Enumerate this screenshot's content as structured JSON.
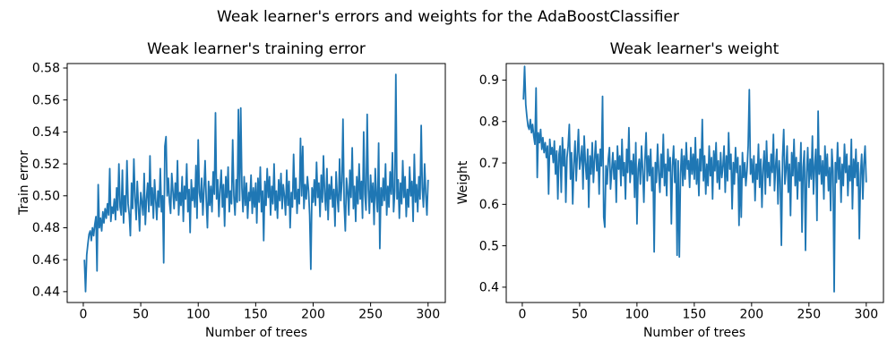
{
  "suptitle": "Weak learner's errors and weights for the AdaBoostClassifier",
  "colors": {
    "line": "#1f77b4",
    "axes": "#000000",
    "text": "#000000",
    "background": "#ffffff"
  },
  "chart_data": [
    {
      "type": "line",
      "title": "Weak learner's training error",
      "xlabel": "Number of trees",
      "ylabel": "Train error",
      "legend_position": "none",
      "grid": false,
      "x_start": 1,
      "x_step": 1,
      "xlim": [
        -14,
        315
      ],
      "ylim": [
        0.4332,
        0.5828
      ],
      "xticks": [
        0,
        50,
        100,
        150,
        200,
        250,
        300
      ],
      "xtick_labels": [
        "0",
        "50",
        "100",
        "150",
        "200",
        "250",
        "300"
      ],
      "yticks": [
        0.44,
        0.46,
        0.48,
        0.5,
        0.52,
        0.54,
        0.56,
        0.58
      ],
      "ytick_labels": [
        "0.44",
        "0.46",
        "0.48",
        "0.50",
        "0.52",
        "0.54",
        "0.56",
        "0.58"
      ],
      "y": [
        0.46,
        0.44,
        0.463,
        0.47,
        0.476,
        0.478,
        0.472,
        0.48,
        0.475,
        0.482,
        0.487,
        0.453,
        0.507,
        0.48,
        0.486,
        0.478,
        0.49,
        0.483,
        0.492,
        0.486,
        0.495,
        0.488,
        0.517,
        0.484,
        0.493,
        0.489,
        0.498,
        0.485,
        0.505,
        0.491,
        0.52,
        0.493,
        0.488,
        0.516,
        0.483,
        0.5,
        0.49,
        0.522,
        0.495,
        0.488,
        0.475,
        0.508,
        0.492,
        0.523,
        0.499,
        0.485,
        0.509,
        0.494,
        0.478,
        0.502,
        0.496,
        0.488,
        0.514,
        0.482,
        0.498,
        0.508,
        0.49,
        0.525,
        0.494,
        0.505,
        0.486,
        0.51,
        0.497,
        0.485,
        0.503,
        0.493,
        0.517,
        0.49,
        0.5,
        0.458,
        0.531,
        0.537,
        0.5,
        0.511,
        0.496,
        0.489,
        0.514,
        0.503,
        0.492,
        0.508,
        0.497,
        0.522,
        0.488,
        0.502,
        0.494,
        0.512,
        0.484,
        0.506,
        0.498,
        0.52,
        0.49,
        0.504,
        0.477,
        0.51,
        0.497,
        0.505,
        0.493,
        0.519,
        0.486,
        0.535,
        0.502,
        0.496,
        0.511,
        0.488,
        0.503,
        0.522,
        0.497,
        0.48,
        0.509,
        0.494,
        0.506,
        0.49,
        0.515,
        0.501,
        0.552,
        0.498,
        0.51,
        0.487,
        0.504,
        0.516,
        0.493,
        0.507,
        0.481,
        0.512,
        0.499,
        0.518,
        0.49,
        0.503,
        0.495,
        0.535,
        0.5,
        0.488,
        0.51,
        0.496,
        0.554,
        0.497,
        0.555,
        0.505,
        0.49,
        0.512,
        0.494,
        0.508,
        0.486,
        0.502,
        0.497,
        0.513,
        0.489,
        0.505,
        0.493,
        0.508,
        0.483,
        0.511,
        0.496,
        0.518,
        0.49,
        0.503,
        0.472,
        0.509,
        0.494,
        0.517,
        0.499,
        0.512,
        0.488,
        0.506,
        0.495,
        0.52,
        0.491,
        0.503,
        0.486,
        0.51,
        0.497,
        0.514,
        0.492,
        0.507,
        0.5,
        0.488,
        0.516,
        0.494,
        0.509,
        0.48,
        0.502,
        0.493,
        0.526,
        0.498,
        0.511,
        0.489,
        0.504,
        0.495,
        0.536,
        0.5,
        0.531,
        0.492,
        0.507,
        0.498,
        0.512,
        0.503,
        0.488,
        0.454,
        0.505,
        0.496,
        0.51,
        0.494,
        0.521,
        0.499,
        0.508,
        0.487,
        0.513,
        0.496,
        0.525,
        0.502,
        0.491,
        0.517,
        0.485,
        0.507,
        0.498,
        0.512,
        0.493,
        0.504,
        0.481,
        0.515,
        0.5,
        0.49,
        0.523,
        0.497,
        0.509,
        0.548,
        0.495,
        0.478,
        0.511,
        0.503,
        0.488,
        0.516,
        0.499,
        0.53,
        0.492,
        0.506,
        0.484,
        0.512,
        0.495,
        0.52,
        0.498,
        0.509,
        0.486,
        0.54,
        0.501,
        0.491,
        0.551,
        0.504,
        0.489,
        0.513,
        0.496,
        0.508,
        0.482,
        0.517,
        0.5,
        0.49,
        0.533,
        0.467,
        0.505,
        0.494,
        0.511,
        0.497,
        0.52,
        0.488,
        0.506,
        0.493,
        0.515,
        0.501,
        0.527,
        0.49,
        0.503,
        0.576,
        0.498,
        0.51,
        0.486,
        0.508,
        0.495,
        0.522,
        0.499,
        0.512,
        0.487,
        0.504,
        0.493,
        0.518,
        0.5,
        0.509,
        0.484,
        0.526,
        0.496,
        0.507,
        0.49,
        0.512,
        0.498,
        0.544,
        0.505,
        0.493,
        0.52,
        0.501,
        0.488,
        0.51
      ]
    },
    {
      "type": "line",
      "title": "Weak learner's weight",
      "xlabel": "Number of trees",
      "ylabel": "Weight",
      "legend_position": "none",
      "grid": false,
      "x_start": 1,
      "x_step": 1,
      "xlim": [
        -14,
        315
      ],
      "ylim": [
        0.363,
        0.94
      ],
      "xticks": [
        0,
        50,
        100,
        150,
        200,
        250,
        300
      ],
      "xtick_labels": [
        "0",
        "50",
        "100",
        "150",
        "200",
        "250",
        "300"
      ],
      "yticks": [
        0.4,
        0.5,
        0.6,
        0.7,
        0.8,
        0.9
      ],
      "ytick_labels": [
        "0.4",
        "0.5",
        "0.6",
        "0.7",
        "0.8",
        "0.9"
      ],
      "y": [
        0.853,
        0.933,
        0.841,
        0.813,
        0.789,
        0.781,
        0.805,
        0.773,
        0.793,
        0.765,
        0.745,
        0.881,
        0.665,
        0.773,
        0.749,
        0.781,
        0.733,
        0.761,
        0.725,
        0.749,
        0.713,
        0.741,
        0.625,
        0.757,
        0.721,
        0.737,
        0.701,
        0.753,
        0.673,
        0.729,
        0.613,
        0.721,
        0.741,
        0.629,
        0.761,
        0.693,
        0.733,
        0.605,
        0.713,
        0.741,
        0.793,
        0.661,
        0.725,
        0.601,
        0.697,
        0.753,
        0.657,
        0.717,
        0.781,
        0.685,
        0.709,
        0.741,
        0.637,
        0.765,
        0.701,
        0.661,
        0.733,
        0.593,
        0.717,
        0.673,
        0.749,
        0.653,
        0.705,
        0.753,
        0.681,
        0.721,
        0.625,
        0.733,
        0.693,
        0.861,
        0.569,
        0.545,
        0.693,
        0.649,
        0.709,
        0.737,
        0.637,
        0.681,
        0.725,
        0.661,
        0.705,
        0.605,
        0.741,
        0.685,
        0.717,
        0.645,
        0.757,
        0.669,
        0.701,
        0.613,
        0.733,
        0.677,
        0.785,
        0.653,
        0.705,
        0.673,
        0.721,
        0.617,
        0.749,
        0.553,
        0.685,
        0.709,
        0.649,
        0.741,
        0.681,
        0.605,
        0.705,
        0.773,
        0.657,
        0.717,
        0.669,
        0.733,
        0.633,
        0.689,
        0.485,
        0.701,
        0.653,
        0.745,
        0.677,
        0.629,
        0.721,
        0.665,
        0.769,
        0.645,
        0.697,
        0.621,
        0.733,
        0.681,
        0.713,
        0.553,
        0.693,
        0.741,
        0.653,
        0.709,
        0.477,
        0.705,
        0.473,
        0.673,
        0.733,
        0.645,
        0.717,
        0.661,
        0.749,
        0.685,
        0.705,
        0.641,
        0.737,
        0.673,
        0.721,
        0.661,
        0.761,
        0.649,
        0.709,
        0.621,
        0.733,
        0.681,
        0.805,
        0.657,
        0.717,
        0.625,
        0.697,
        0.645,
        0.741,
        0.669,
        0.713,
        0.613,
        0.729,
        0.681,
        0.749,
        0.653,
        0.705,
        0.637,
        0.725,
        0.665,
        0.693,
        0.741,
        0.629,
        0.717,
        0.657,
        0.773,
        0.685,
        0.721,
        0.589,
        0.701,
        0.649,
        0.737,
        0.677,
        0.713,
        0.549,
        0.693,
        0.569,
        0.725,
        0.665,
        0.701,
        0.645,
        0.681,
        0.741,
        0.877,
        0.673,
        0.709,
        0.653,
        0.717,
        0.609,
        0.697,
        0.661,
        0.745,
        0.641,
        0.709,
        0.593,
        0.685,
        0.729,
        0.625,
        0.753,
        0.665,
        0.701,
        0.645,
        0.721,
        0.677,
        0.769,
        0.633,
        0.693,
        0.733,
        0.601,
        0.705,
        0.657,
        0.501,
        0.713,
        0.781,
        0.649,
        0.681,
        0.741,
        0.629,
        0.697,
        0.573,
        0.725,
        0.669,
        0.757,
        0.645,
        0.713,
        0.613,
        0.701,
        0.657,
        0.749,
        0.533,
        0.689,
        0.729,
        0.489,
        0.677,
        0.737,
        0.641,
        0.709,
        0.661,
        0.765,
        0.625,
        0.693,
        0.733,
        0.561,
        0.825,
        0.673,
        0.717,
        0.649,
        0.705,
        0.613,
        0.741,
        0.669,
        0.721,
        0.633,
        0.689,
        0.585,
        0.733,
        0.681,
        0.389,
        0.701,
        0.653,
        0.749,
        0.661,
        0.713,
        0.605,
        0.697,
        0.645,
        0.745,
        0.677,
        0.721,
        0.621,
        0.693,
        0.657,
        0.757,
        0.589,
        0.709,
        0.665,
        0.733,
        0.645,
        0.701,
        0.517,
        0.673,
        0.721,
        0.613,
        0.697,
        0.741,
        0.653
      ]
    }
  ]
}
